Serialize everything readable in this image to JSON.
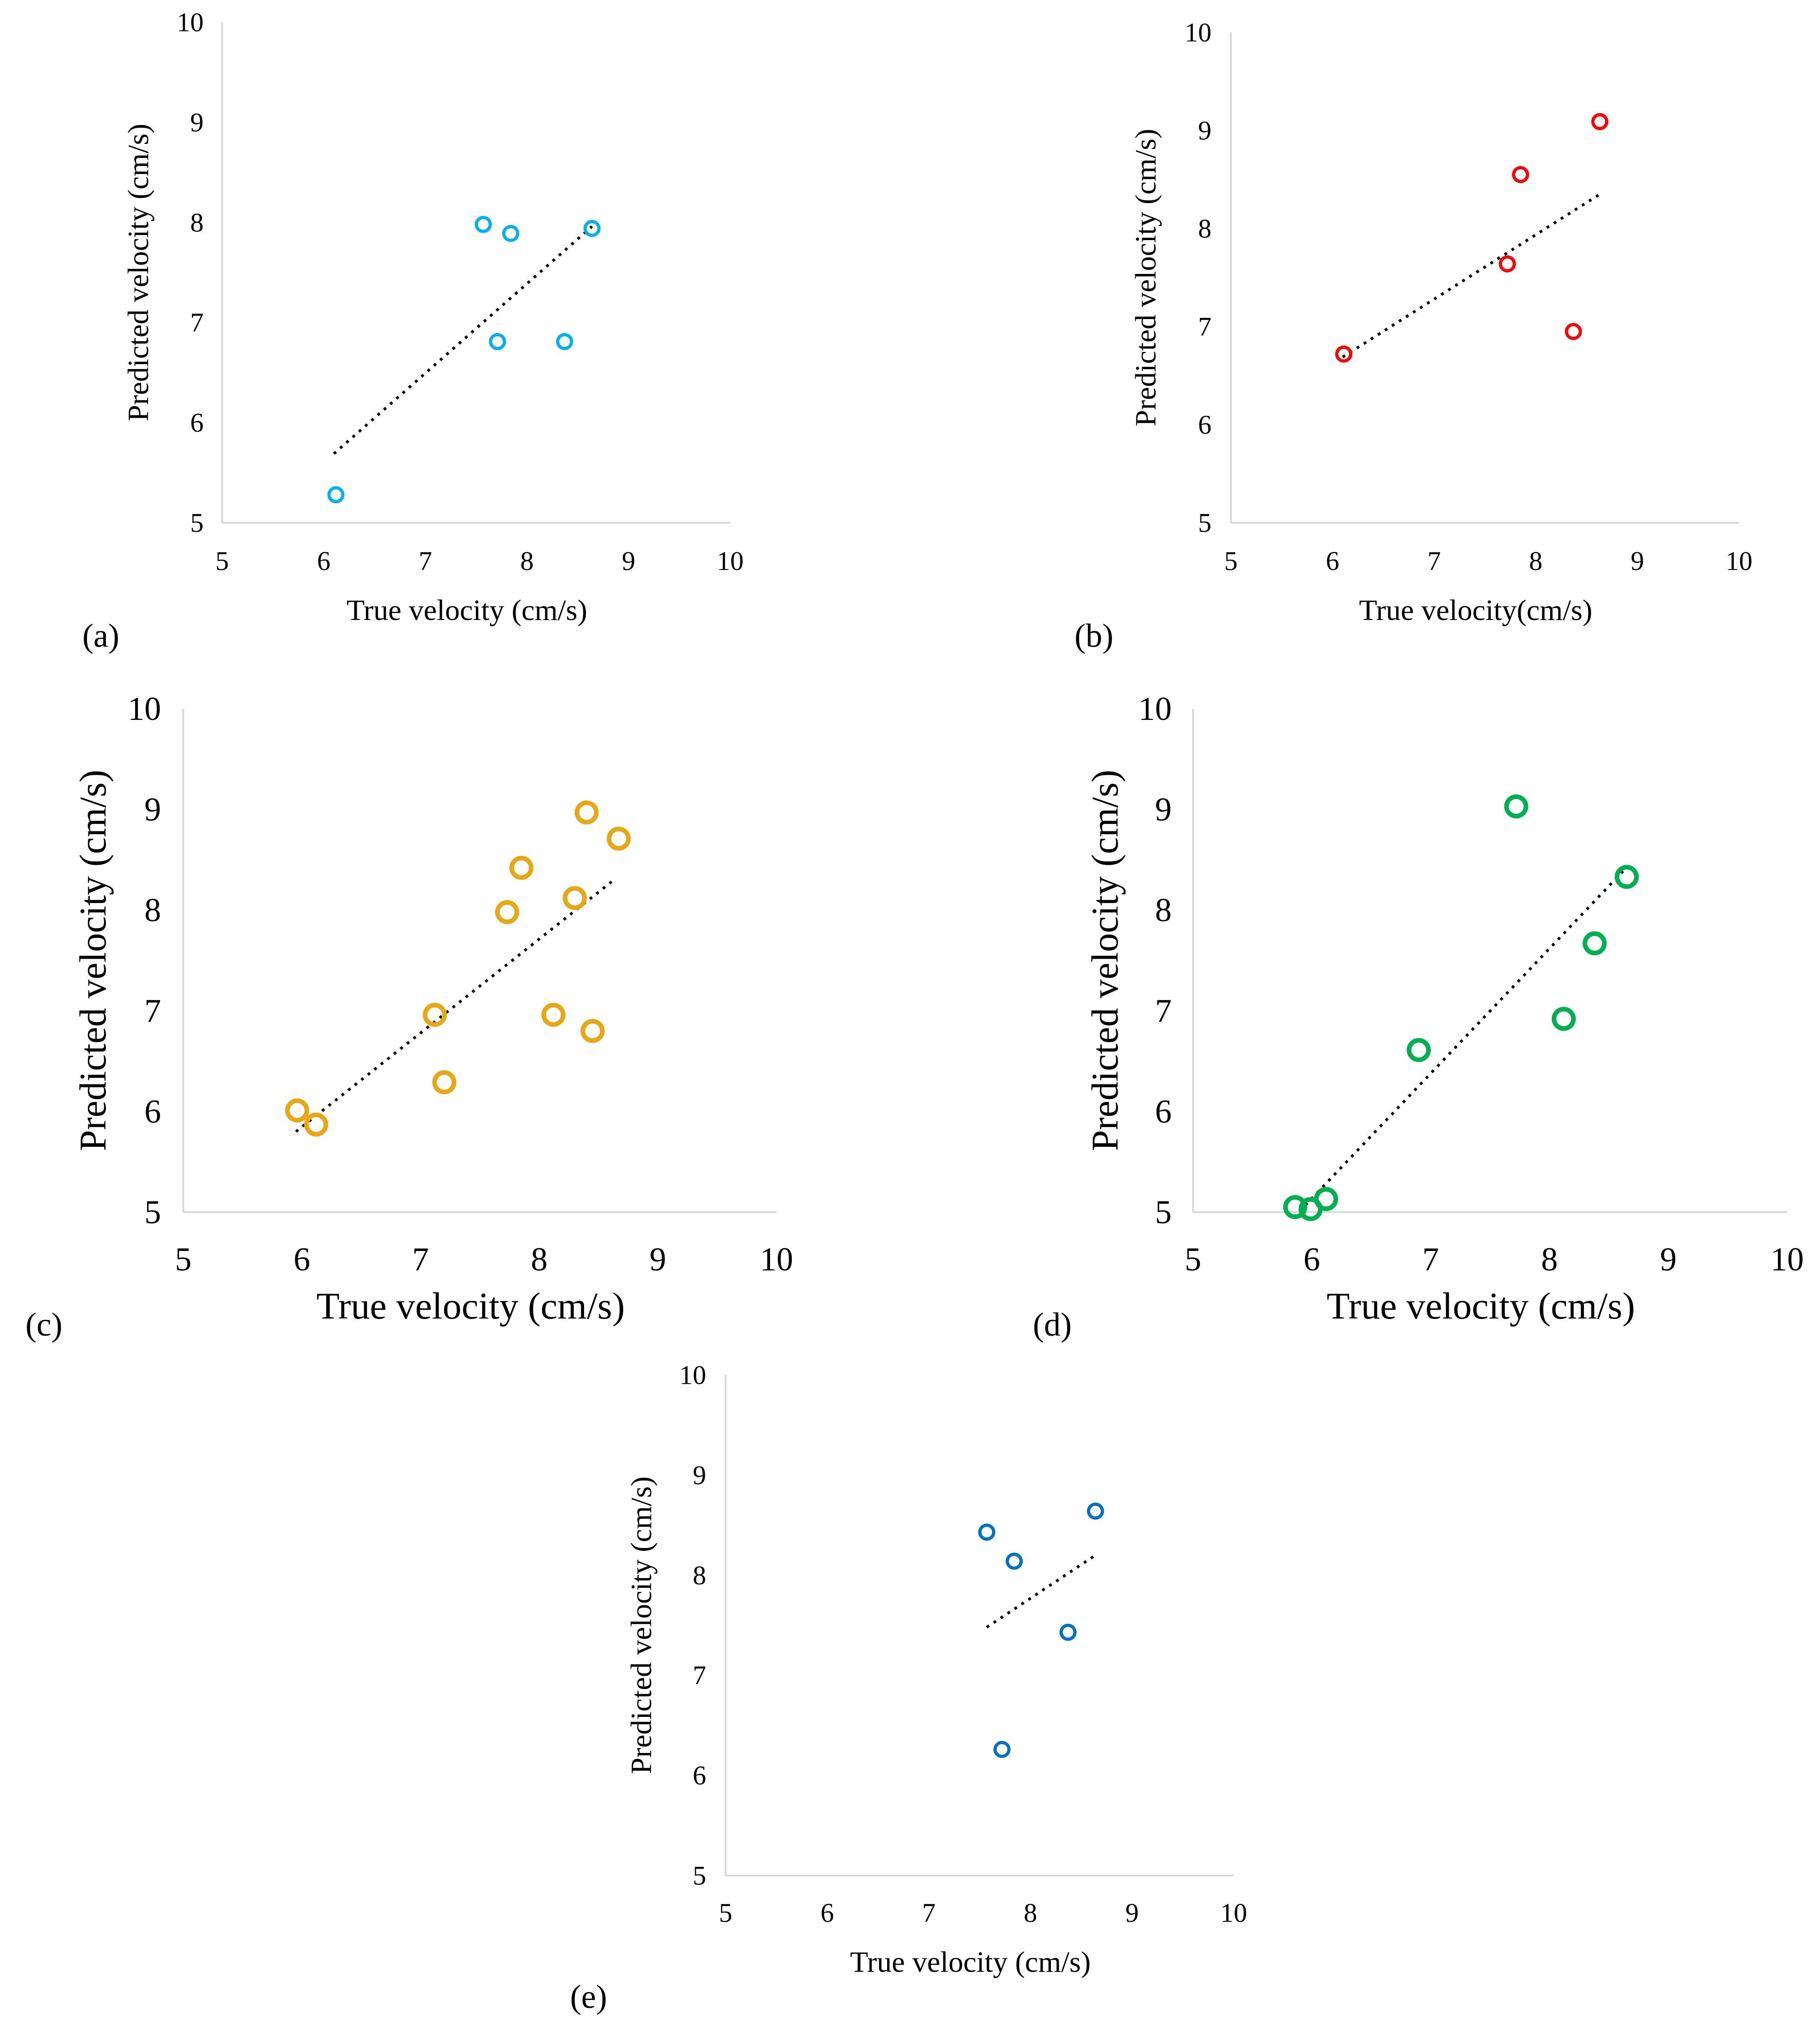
{
  "chart_data": [
    {
      "type": "scatter",
      "panel_label": "(a)",
      "xlabel": "True velocity (cm/s)",
      "ylabel": "Predicted velocity (cm/s)",
      "xlim": [
        5,
        10
      ],
      "ylim": [
        5,
        10
      ],
      "xticks": [
        "5",
        "6",
        "7",
        "8",
        "9",
        "10"
      ],
      "yticks": [
        "5",
        "6",
        "7",
        "8",
        "9",
        "10"
      ],
      "marker_color": "#00B0F0",
      "grid": false,
      "legend": "none",
      "points": [
        {
          "x": 6.12,
          "y": 5.28
        },
        {
          "x": 7.57,
          "y": 7.98
        },
        {
          "x": 7.84,
          "y": 7.89
        },
        {
          "x": 7.71,
          "y": 6.81
        },
        {
          "x": 8.37,
          "y": 6.81
        },
        {
          "x": 8.64,
          "y": 7.94
        }
      ],
      "trendline": {
        "x_start": 6.1,
        "y_start": 5.69,
        "x_end": 8.64,
        "y_end": 7.96
      }
    },
    {
      "type": "scatter",
      "panel_label": "(b)",
      "xlabel": "True velocity(cm/s)",
      "ylabel": "Predicted velocity (cm/s)",
      "xlim": [
        5,
        10
      ],
      "ylim": [
        5,
        10
      ],
      "xticks": [
        "5",
        "6",
        "7",
        "8",
        "9",
        "10"
      ],
      "yticks": [
        "5",
        "6",
        "7",
        "8",
        "9",
        "10"
      ],
      "marker_color": "#FF0000",
      "grid": false,
      "legend": "none",
      "points": [
        {
          "x": 6.11,
          "y": 6.72
        },
        {
          "x": 7.72,
          "y": 7.64
        },
        {
          "x": 7.85,
          "y": 8.55
        },
        {
          "x": 8.37,
          "y": 6.95
        },
        {
          "x": 8.63,
          "y": 9.09
        }
      ],
      "trendline": {
        "x_start": 6.1,
        "y_start": 6.69,
        "x_end": 8.63,
        "y_end": 8.35
      }
    },
    {
      "type": "scatter",
      "panel_label": "(c)",
      "xlabel": "True velocity (cm/s)",
      "ylabel": "Predicted velocity (cm/s)",
      "xlim": [
        5,
        10
      ],
      "ylim": [
        5,
        10
      ],
      "xticks": [
        "5",
        "6",
        "7",
        "8",
        "9",
        "10"
      ],
      "yticks": [
        "5",
        "6",
        "7",
        "8",
        "9",
        "10"
      ],
      "marker_color": "#E6A817",
      "grid": false,
      "legend": "none",
      "points": [
        {
          "x": 5.96,
          "y": 6.01
        },
        {
          "x": 6.12,
          "y": 5.87
        },
        {
          "x": 7.12,
          "y": 6.96
        },
        {
          "x": 7.2,
          "y": 6.29
        },
        {
          "x": 7.73,
          "y": 7.98
        },
        {
          "x": 7.85,
          "y": 8.42
        },
        {
          "x": 8.12,
          "y": 6.96
        },
        {
          "x": 8.3,
          "y": 8.12
        },
        {
          "x": 8.4,
          "y": 8.97
        },
        {
          "x": 8.45,
          "y": 6.8
        },
        {
          "x": 8.67,
          "y": 8.71
        }
      ],
      "trendline": {
        "x_start": 5.95,
        "y_start": 5.8,
        "x_end": 8.63,
        "y_end": 8.3
      }
    },
    {
      "type": "scatter",
      "panel_label": "(d)",
      "xlabel": "True velocity (cm/s)",
      "ylabel": "Predicted velocity (cm/s)",
      "xlim": [
        5,
        10
      ],
      "ylim": [
        5,
        10
      ],
      "xticks": [
        "5",
        "6",
        "7",
        "8",
        "9",
        "10"
      ],
      "yticks": [
        "5",
        "6",
        "7",
        "8",
        "9",
        "10"
      ],
      "marker_color": "#00B050",
      "grid": false,
      "legend": "none",
      "points": [
        {
          "x": 5.86,
          "y": 5.05
        },
        {
          "x": 5.99,
          "y": 5.03
        },
        {
          "x": 6.12,
          "y": 5.13
        },
        {
          "x": 6.9,
          "y": 6.61
        },
        {
          "x": 7.72,
          "y": 9.03
        },
        {
          "x": 8.12,
          "y": 6.92
        },
        {
          "x": 8.38,
          "y": 7.67
        },
        {
          "x": 8.65,
          "y": 8.33
        }
      ],
      "trendline": {
        "x_start": 5.85,
        "y_start": 4.95,
        "x_end": 8.63,
        "y_end": 8.4
      }
    },
    {
      "type": "scatter",
      "panel_label": "(e)",
      "xlabel": "True velocity (cm/s)",
      "ylabel": "Predicted velocity (cm/s)",
      "xlim": [
        5,
        10
      ],
      "ylim": [
        5,
        10
      ],
      "xticks": [
        "5",
        "6",
        "7",
        "8",
        "9",
        "10"
      ],
      "yticks": [
        "5",
        "6",
        "7",
        "8",
        "9",
        "10"
      ],
      "marker_color": "#0070C0",
      "grid": false,
      "legend": "none",
      "points": [
        {
          "x": 7.57,
          "y": 8.43
        },
        {
          "x": 7.84,
          "y": 8.14
        },
        {
          "x": 7.72,
          "y": 6.26
        },
        {
          "x": 8.37,
          "y": 7.43
        },
        {
          "x": 8.64,
          "y": 8.64
        }
      ],
      "trendline": {
        "x_start": 7.57,
        "y_start": 7.48,
        "x_end": 8.64,
        "y_end": 8.2
      }
    }
  ]
}
